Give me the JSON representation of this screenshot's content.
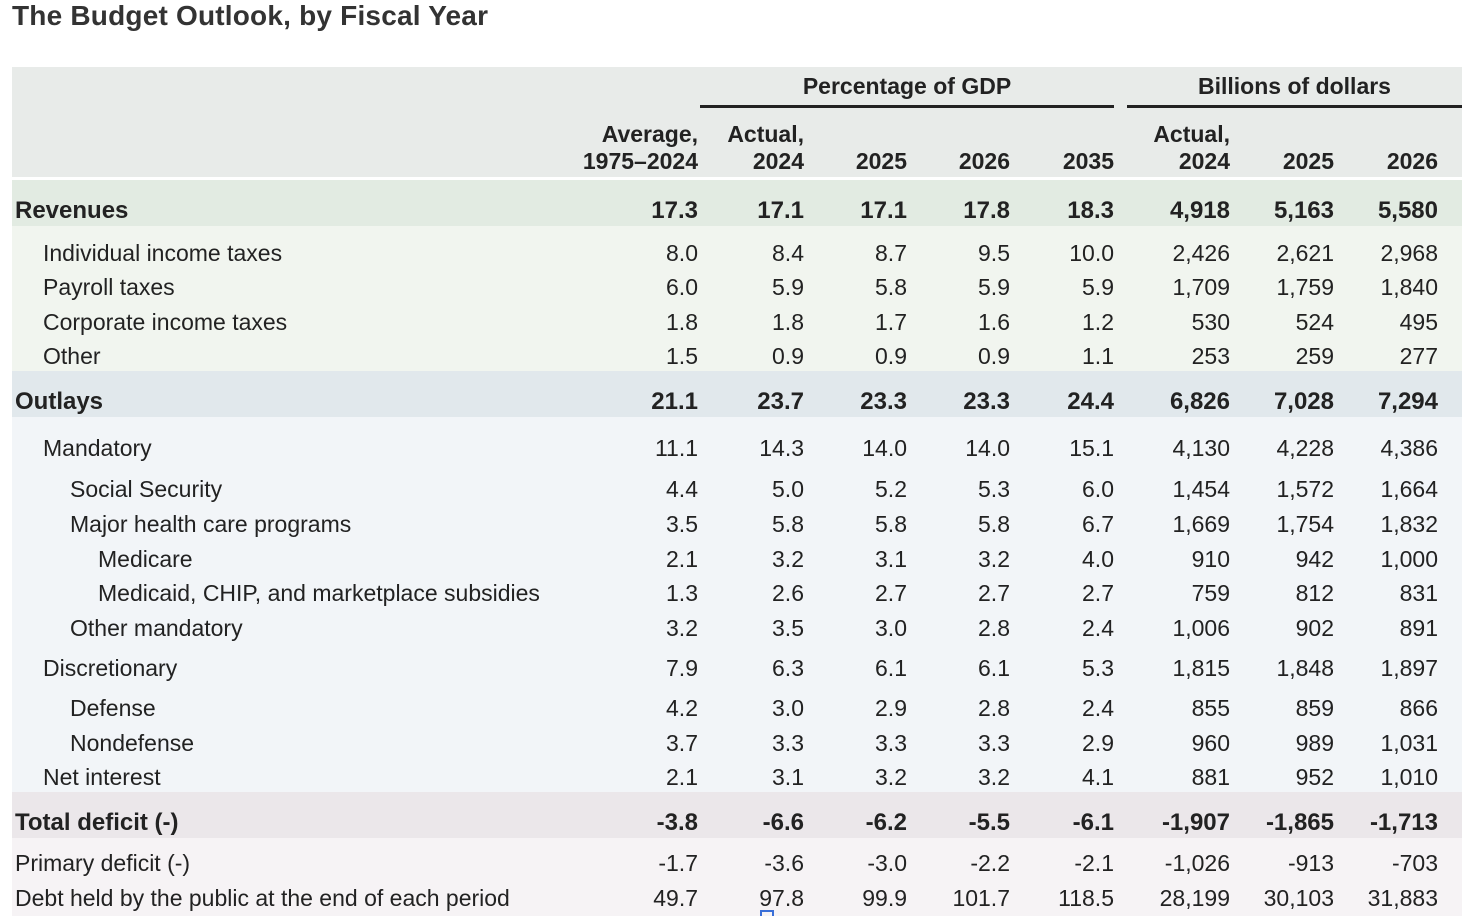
{
  "title": "The Budget Outlook, by Fiscal Year",
  "chart_data": {
    "type": "table",
    "title": "The Budget Outlook, by Fiscal Year",
    "column_groups": [
      {
        "label": "Percentage of GDP"
      },
      {
        "label": "Billions of dollars"
      }
    ],
    "columns": [
      {
        "line1": "Average,",
        "line2": "1975–2024"
      },
      {
        "line1": "Actual,",
        "line2": "2024"
      },
      {
        "line1": "",
        "line2": "2025"
      },
      {
        "line1": "",
        "line2": "2026"
      },
      {
        "line1": "",
        "line2": "2035"
      },
      {
        "line1": "Actual,",
        "line2": "2024"
      },
      {
        "line1": "",
        "line2": "2025"
      },
      {
        "line1": "",
        "line2": "2026"
      }
    ],
    "rows": [
      {
        "label": "Revenues",
        "level": 0,
        "bold": true,
        "band": "rev-head",
        "values": [
          "17.3",
          "17.1",
          "17.1",
          "17.8",
          "18.3",
          "4,918",
          "5,163",
          "5,580"
        ]
      },
      {
        "label": "Individual income taxes",
        "level": 1,
        "bold": false,
        "band": "rev",
        "values": [
          "8.0",
          "8.4",
          "8.7",
          "9.5",
          "10.0",
          "2,426",
          "2,621",
          "2,968"
        ]
      },
      {
        "label": "Payroll taxes",
        "level": 1,
        "bold": false,
        "band": "rev",
        "values": [
          "6.0",
          "5.9",
          "5.8",
          "5.9",
          "5.9",
          "1,709",
          "1,759",
          "1,840"
        ]
      },
      {
        "label": "Corporate income taxes",
        "level": 1,
        "bold": false,
        "band": "rev",
        "values": [
          "1.8",
          "1.8",
          "1.7",
          "1.6",
          "1.2",
          "530",
          "524",
          "495"
        ]
      },
      {
        "label": "Other",
        "level": 1,
        "bold": false,
        "band": "rev",
        "values": [
          "1.5",
          "0.9",
          "0.9",
          "0.9",
          "1.1",
          "253",
          "259",
          "277"
        ]
      },
      {
        "label": "Outlays",
        "level": 0,
        "bold": true,
        "band": "out-head",
        "values": [
          "21.1",
          "23.7",
          "23.3",
          "23.3",
          "24.4",
          "6,826",
          "7,028",
          "7,294"
        ]
      },
      {
        "label": "Mandatory",
        "level": 1,
        "bold": false,
        "band": "out",
        "values": [
          "11.1",
          "14.3",
          "14.0",
          "14.0",
          "15.1",
          "4,130",
          "4,228",
          "4,386"
        ]
      },
      {
        "label": "Social Security",
        "level": 2,
        "bold": false,
        "band": "out",
        "values": [
          "4.4",
          "5.0",
          "5.2",
          "5.3",
          "6.0",
          "1,454",
          "1,572",
          "1,664"
        ]
      },
      {
        "label": "Major health care programs",
        "level": 2,
        "bold": false,
        "band": "out",
        "values": [
          "3.5",
          "5.8",
          "5.8",
          "5.8",
          "6.7",
          "1,669",
          "1,754",
          "1,832"
        ]
      },
      {
        "label": "Medicare",
        "level": 3,
        "bold": false,
        "band": "out",
        "values": [
          "2.1",
          "3.2",
          "3.1",
          "3.2",
          "4.0",
          "910",
          "942",
          "1,000"
        ]
      },
      {
        "label": "Medicaid, CHIP, and marketplace subsidies",
        "level": 3,
        "bold": false,
        "band": "out",
        "values": [
          "1.3",
          "2.6",
          "2.7",
          "2.7",
          "2.7",
          "759",
          "812",
          "831"
        ]
      },
      {
        "label": "Other mandatory",
        "level": 2,
        "bold": false,
        "band": "out",
        "values": [
          "3.2",
          "3.5",
          "3.0",
          "2.8",
          "2.4",
          "1,006",
          "902",
          "891"
        ]
      },
      {
        "label": "Discretionary",
        "level": 1,
        "bold": false,
        "band": "out",
        "values": [
          "7.9",
          "6.3",
          "6.1",
          "6.1",
          "5.3",
          "1,815",
          "1,848",
          "1,897"
        ]
      },
      {
        "label": "Defense",
        "level": 2,
        "bold": false,
        "band": "out",
        "values": [
          "4.2",
          "3.0",
          "2.9",
          "2.8",
          "2.4",
          "855",
          "859",
          "866"
        ]
      },
      {
        "label": "Nondefense",
        "level": 2,
        "bold": false,
        "band": "out",
        "values": [
          "3.7",
          "3.3",
          "3.3",
          "3.3",
          "2.9",
          "960",
          "989",
          "1,031"
        ]
      },
      {
        "label": "Net interest",
        "level": 1,
        "bold": false,
        "band": "out",
        "values": [
          "2.1",
          "3.1",
          "3.2",
          "3.2",
          "4.1",
          "881",
          "952",
          "1,010"
        ]
      },
      {
        "label": "Total deficit (-)",
        "level": 0,
        "bold": true,
        "band": "def-head",
        "values": [
          "-3.8",
          "-6.6",
          "-6.2",
          "-5.5",
          "-6.1",
          "-1,907",
          "-1,865",
          "-1,713"
        ]
      },
      {
        "label": "Primary deficit (-)",
        "level": 0,
        "bold": false,
        "band": "def",
        "values": [
          "-1.7",
          "-3.6",
          "-3.0",
          "-2.2",
          "-2.1",
          "-1,026",
          "-913",
          "-703"
        ]
      },
      {
        "label": "Debt held by the public at the end of each period",
        "level": 0,
        "bold": false,
        "band": "def",
        "values": [
          "49.7",
          "97.8",
          "99.9",
          "101.7",
          "118.5",
          "28,199",
          "30,103",
          "31,883"
        ]
      }
    ]
  },
  "colors": {
    "header_bg": "#e8ebe9",
    "rev_head": "#e2ebe2",
    "rev": "#f1f5ef",
    "out_head": "#e1e8ec",
    "out": "#f2f5f8",
    "def_head": "#ebe7ea",
    "def": "#f6f3f5"
  }
}
